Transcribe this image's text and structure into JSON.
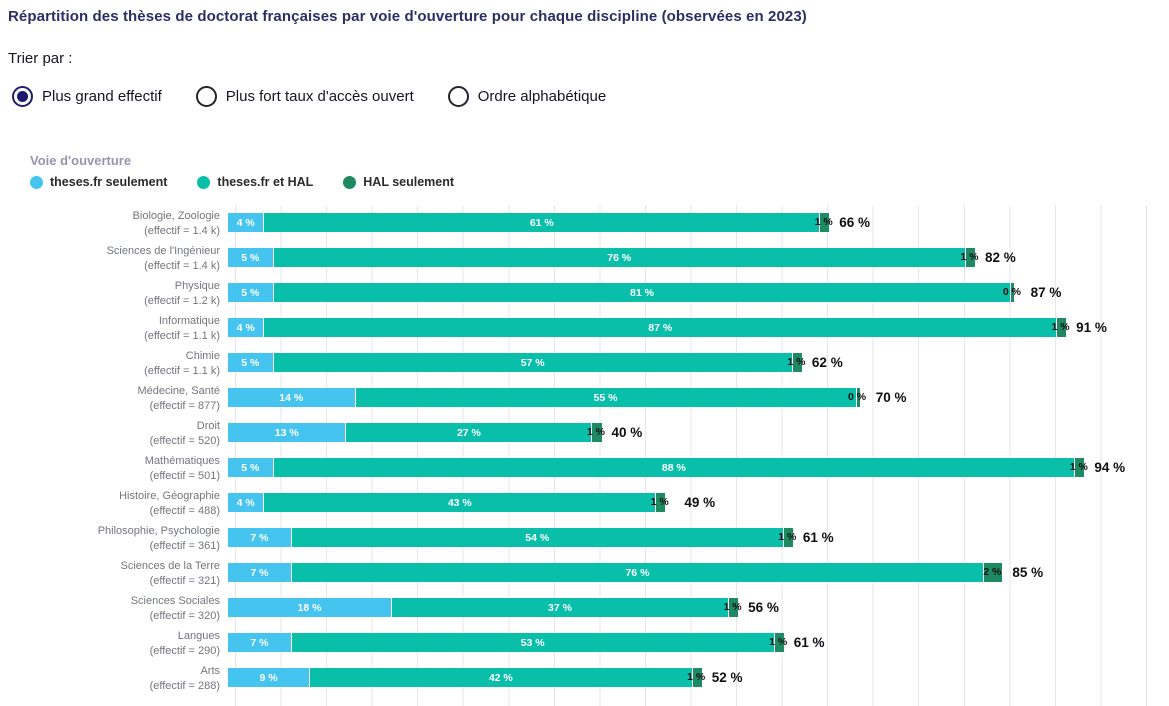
{
  "title": "Répartition des thèses de doctorat françaises par voie d'ouverture pour chaque discipline (observées en 2023)",
  "sort": {
    "label": "Trier par :",
    "options": [
      {
        "label": "Plus grand effectif",
        "selected": true
      },
      {
        "label": "Plus fort taux d'accès ouvert",
        "selected": false
      },
      {
        "label": "Ordre alphabétique",
        "selected": false
      }
    ]
  },
  "legend": {
    "title": "Voie d'ouverture",
    "items": [
      {
        "label": "theses.fr seulement",
        "color": "#45c4f0"
      },
      {
        "label": "theses.fr et HAL",
        "color": "#09bfaa"
      },
      {
        "label": "HAL seulement",
        "color": "#1e8a63"
      }
    ]
  },
  "chart_data": {
    "type": "bar",
    "orientation": "horizontal",
    "stacked": true,
    "unit": "%",
    "xlim": [
      0,
      100
    ],
    "grid": "vertical gridlines every 5%",
    "legend_position": "top-left",
    "categories": [
      "Biologie, Zoologie",
      "Sciences de l'Ingénieur",
      "Physique",
      "Informatique",
      "Chimie",
      "Médecine, Santé",
      "Droit",
      "Mathématiques",
      "Histoire, Géographie",
      "Philosophie, Psychologie",
      "Sciences de la Terre",
      "Sciences Sociales",
      "Langues",
      "Arts"
    ],
    "effectif_labels": [
      "(effectif = 1.4 k)",
      "(effectif = 1.4 k)",
      "(effectif = 1.2 k)",
      "(effectif = 1.1 k)",
      "(effectif = 1.1 k)",
      "(effectif = 877)",
      "(effectif = 520)",
      "(effectif = 501)",
      "(effectif = 488)",
      "(effectif = 361)",
      "(effectif = 321)",
      "(effectif = 320)",
      "(effectif = 290)",
      "(effectif = 288)"
    ],
    "series": [
      {
        "name": "theses.fr seulement",
        "color": "#45c4f0",
        "values": [
          4,
          5,
          5,
          4,
          5,
          14,
          13,
          5,
          4,
          7,
          7,
          18,
          7,
          9
        ]
      },
      {
        "name": "theses.fr et HAL",
        "color": "#09bfaa",
        "values": [
          61,
          76,
          81,
          87,
          57,
          55,
          27,
          88,
          43,
          54,
          76,
          37,
          53,
          42
        ]
      },
      {
        "name": "HAL seulement",
        "color": "#1e8a63",
        "values": [
          1,
          1,
          0,
          1,
          1,
          0,
          1,
          1,
          1,
          1,
          2,
          1,
          1,
          1
        ]
      }
    ],
    "totals": [
      66,
      82,
      87,
      91,
      62,
      70,
      40,
      94,
      49,
      61,
      85,
      56,
      61,
      52
    ],
    "value_suffix": " %"
  }
}
